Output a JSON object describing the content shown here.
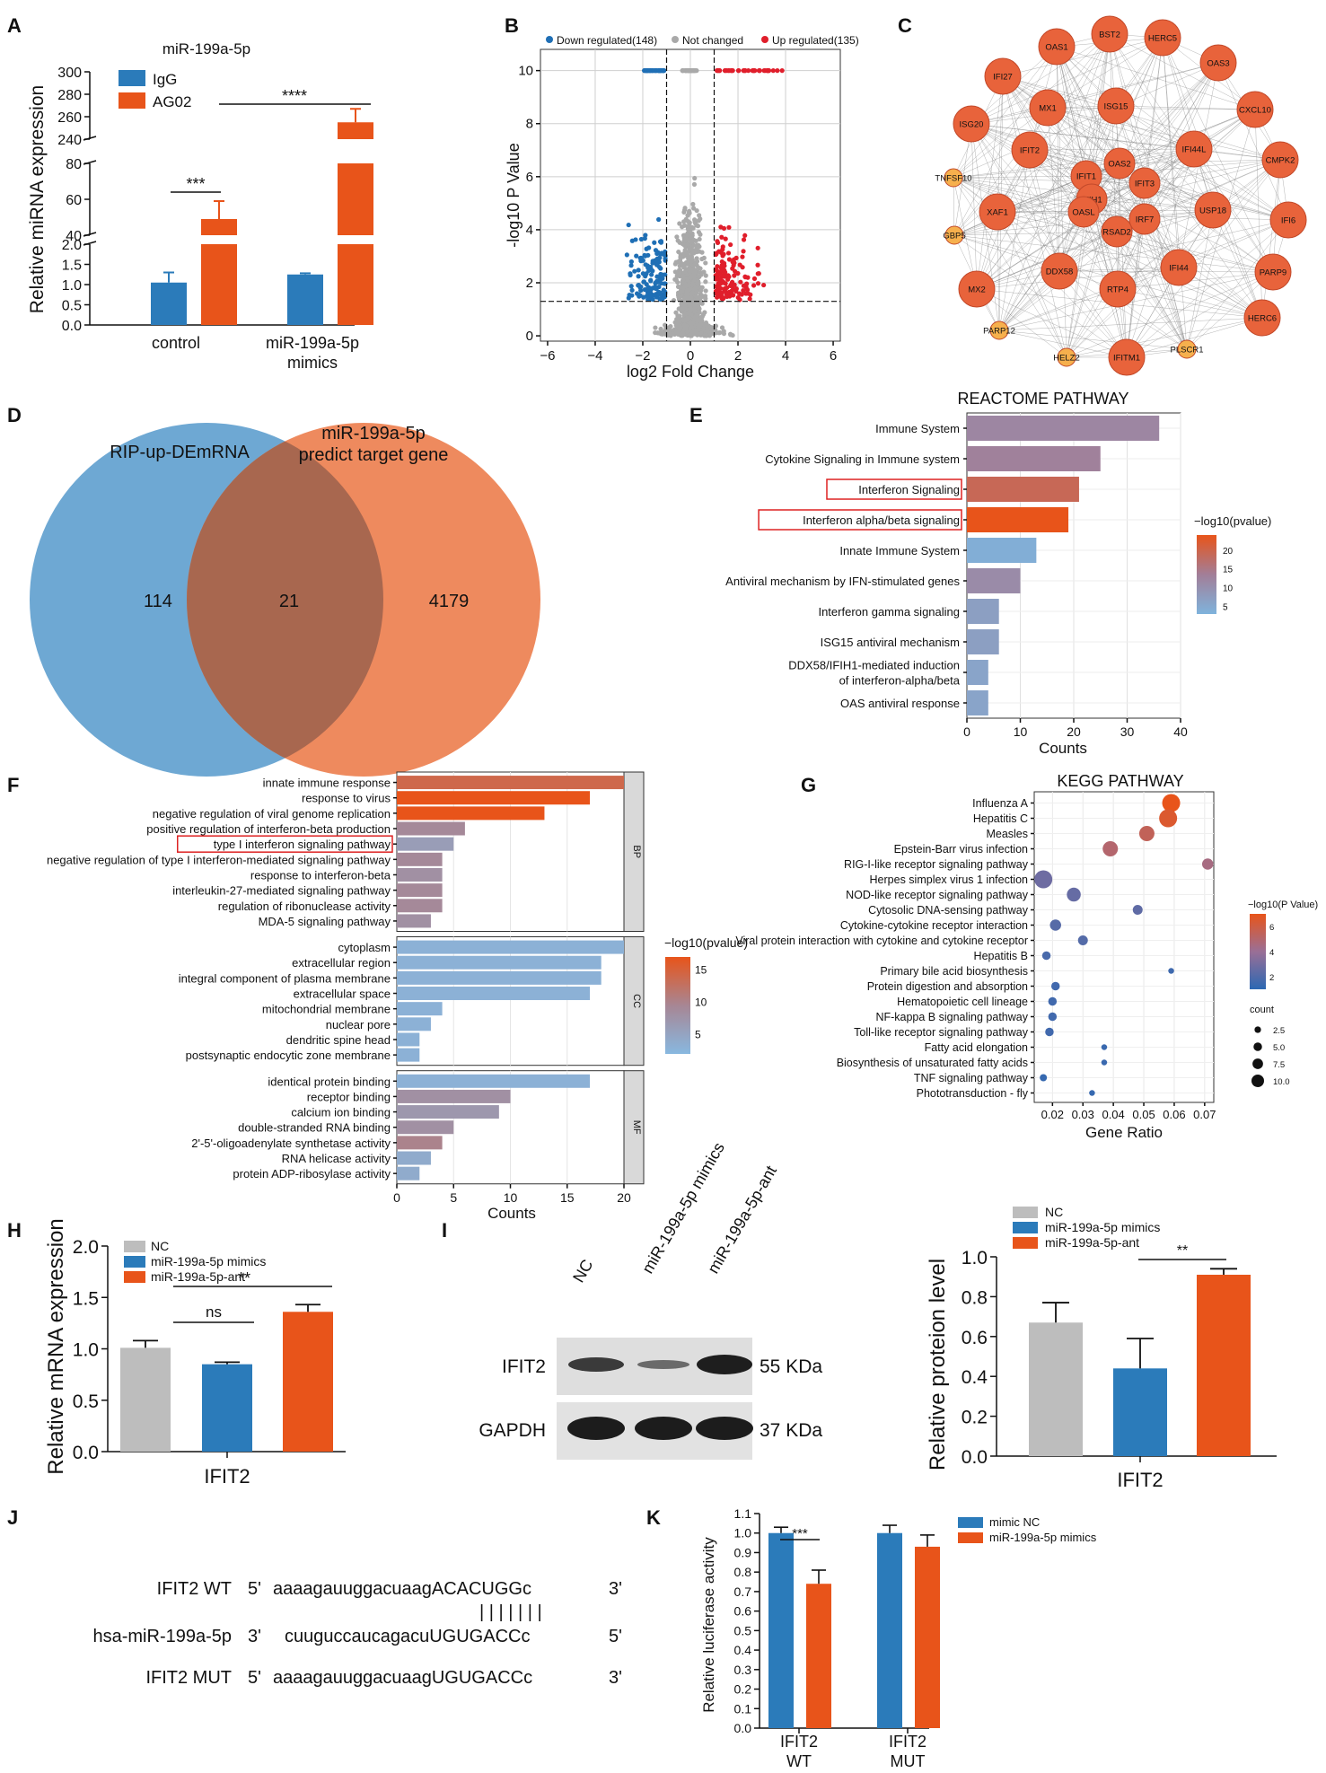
{
  "panel_labels": [
    "A",
    "B",
    "C",
    "D",
    "E",
    "F",
    "G",
    "H",
    "I",
    "J",
    "K"
  ],
  "colors": {
    "blue": "#2b7bba",
    "orange": "#e8541a",
    "gray": "#bdbdbd",
    "venn_left": "#6ea8d3",
    "venn_right": "#ee8a5e",
    "venn_mid": "#a8674f",
    "volcano_down": "#1f6fb5",
    "volcano_up": "#e01e2b",
    "volcano_nc": "#a9a9a9"
  },
  "chart_data": [
    {
      "panel": "A",
      "type": "bar",
      "title": "miR-199a-5p",
      "ylabel": "Relative miRNA expression",
      "categories": [
        "control",
        "miR-199a-5p\nmimics"
      ],
      "legend": [
        "IgG",
        "AG02"
      ],
      "series": [
        {
          "name": "IgG",
          "values": [
            1.05,
            1.25
          ],
          "err": [
            0.25,
            0.03
          ]
        },
        {
          "name": "AG02",
          "values": [
            49,
            255
          ],
          "err": [
            10,
            12
          ]
        }
      ],
      "y_ticks": [
        "0.0",
        "0.5",
        "1.0",
        "1.5",
        "2.0",
        "40",
        "60",
        "80",
        "240",
        "260",
        "280",
        "300"
      ],
      "significance": [
        "***",
        "****"
      ]
    },
    {
      "panel": "B",
      "type": "scatter",
      "xlabel": "log2 Fold Change",
      "ylabel": "-log10 P Value",
      "legend": [
        "Down regulated(148)",
        "Not changed",
        "Up regulated(135)"
      ],
      "x_ticks": [
        "−6",
        "−4",
        "−2",
        "0",
        "2",
        "4",
        "6"
      ],
      "y_ticks": [
        "0",
        "2",
        "4",
        "6",
        "8",
        "10"
      ],
      "xlim": [
        -6.3,
        6.3
      ],
      "ylim": [
        -0.2,
        10.8
      ],
      "thresholds": {
        "log2fc": [
          -1,
          1
        ],
        "neglog10p": 1.3
      }
    },
    {
      "panel": "C",
      "type": "network",
      "nodes": [
        "BST2",
        "HERC5",
        "OAS1",
        "OAS3",
        "IFI27",
        "CXCL10",
        "ISG15",
        "MX1",
        "ISG20",
        "IFI44L",
        "CMPK2",
        "IFIT2",
        "OAS2",
        "IFIT1",
        "IFIT3",
        "TNFSF10",
        "IFIH1",
        "XAF1",
        "USP18",
        "IFI6",
        "OASL",
        "IRF7",
        "RSAD2",
        "GBP5",
        "DDX58",
        "IFI44",
        "PARP9",
        "MX2",
        "RTP4",
        "HERC6",
        "PARP12",
        "PLSCR1",
        "HELZ2",
        "IFITM1"
      ]
    },
    {
      "panel": "D",
      "type": "venn",
      "sets": [
        "RIP-up-DEmRNA",
        "miR-199a-5p predict target gene"
      ],
      "set_title_lines": [
        "miR-199a-5p",
        "predict target gene"
      ],
      "values": {
        "left_only": "114",
        "intersection": "21",
        "right_only": "4179"
      }
    },
    {
      "panel": "E",
      "type": "bar",
      "title": "REACTOME PATHWAY",
      "xlabel": "Counts",
      "categories": [
        "Immune System",
        "Cytokine Signaling in Immune system",
        "Interferon Signaling",
        "Interferon alpha/beta signaling",
        "Innate Immune System",
        "Antiviral mechanism by IFN-stimulated genes",
        "Interferon gamma signaling",
        "ISG15 antiviral mechanism",
        "DDX58/IFIH1-mediated induction\nof interferon-alpha/beta",
        "OAS antiviral response"
      ],
      "values": [
        36,
        25,
        21,
        19,
        13,
        10,
        6,
        6,
        4,
        4
      ],
      "neglog10p": [
        12,
        13,
        19,
        24,
        4,
        11,
        7,
        7,
        6,
        6
      ],
      "highlighted": [
        "Interferon Signaling",
        "Interferon alpha/beta signaling"
      ],
      "x_ticks": [
        "0",
        "10",
        "20",
        "30",
        "40"
      ],
      "xlim": [
        0,
        40
      ],
      "legend_title": "−log10(pvalue)",
      "legend_ticks": [
        "20",
        "15",
        "10",
        "5"
      ],
      "legend_range": [
        3,
        24
      ]
    },
    {
      "panel": "F",
      "type": "bar",
      "xlabel": "Counts",
      "groups": [
        {
          "name": "BP",
          "categories": [
            "innate immune response",
            "response to virus",
            "negative regulation of viral genome replication",
            "positive regulation of interferon-beta production",
            "type I interferon signaling pathway",
            "negative regulation of type I interferon-mediated signaling pathway",
            "response to interferon-beta",
            "interleukin-27-mediated signaling pathway",
            "regulation of ribonuclease activity",
            "MDA-5 signaling pathway"
          ],
          "values": [
            20,
            17,
            13,
            6,
            5,
            4,
            4,
            4,
            4,
            3
          ],
          "neglog10p": [
            14,
            17,
            17,
            9,
            6,
            9,
            8,
            9,
            9,
            8
          ]
        },
        {
          "name": "CC",
          "categories": [
            "cytoplasm",
            "extracellular region",
            "integral component of plasma membrane",
            "extracellular space",
            "mitochondrial membrane",
            "nuclear pore",
            "dendritic spine head",
            "postsynaptic endocytic zone membrane"
          ],
          "values": [
            20,
            18,
            18,
            17,
            4,
            3,
            2,
            2
          ],
          "neglog10p": [
            3,
            3,
            3,
            3,
            3,
            3,
            3,
            3
          ]
        },
        {
          "name": "MF",
          "categories": [
            "identical protein binding",
            "receptor binding",
            "calcium ion binding",
            "double-stranded RNA binding",
            "2'-5'-oligoadenylate synthetase activity",
            "RNA helicase activity",
            "protein ADP-ribosylase activity"
          ],
          "values": [
            17,
            10,
            9,
            5,
            4,
            3,
            2
          ],
          "neglog10p": [
            3,
            8,
            7,
            8,
            10,
            4,
            4
          ]
        }
      ],
      "highlighted": [
        "type I interferon signaling pathway"
      ],
      "x_ticks": [
        "0",
        "5",
        "10",
        "15",
        "20"
      ],
      "xlim": [
        0,
        20
      ],
      "legend_title": "−log10(pvalue)",
      "legend_ticks": [
        "15",
        "10",
        "5"
      ],
      "legend_range": [
        2,
        17
      ]
    },
    {
      "panel": "G",
      "type": "scatter",
      "title": "KEGG PATHWAY",
      "xlabel": "Gene Ratio",
      "categories": [
        "Influenza A",
        "Hepatitis C",
        "Measles",
        "Epstein-Barr virus infection",
        "RIG-I-like receptor signaling pathway",
        "Herpes simplex virus 1 infection",
        "NOD-like receptor signaling pathway",
        "Cytosolic DNA-sensing pathway",
        "Cytokine-cytokine receptor interaction",
        "Viral protein interaction with cytokine and cytokine receptor",
        "Hepatitis B",
        "Primary bile acid biosynthesis",
        "Protein digestion and absorption",
        "Hematopoietic cell lineage",
        "NF-kappa B signaling pathway",
        "Toll-like receptor signaling pathway",
        "Fatty acid elongation",
        "Biosynthesis of unsaturated fatty acids",
        "TNF signaling pathway",
        "Phototransduction - fly"
      ],
      "gene_ratio": [
        0.059,
        0.058,
        0.051,
        0.039,
        0.071,
        0.017,
        0.027,
        0.048,
        0.021,
        0.03,
        0.018,
        0.059,
        0.021,
        0.02,
        0.02,
        0.019,
        0.037,
        0.037,
        0.017,
        0.033
      ],
      "count": [
        10,
        10,
        8,
        8,
        5,
        10,
        7,
        4,
        5,
        4,
        3,
        1,
        3,
        3,
        3,
        3,
        1,
        1,
        2,
        1
      ],
      "neglog10p": [
        7,
        6.5,
        5.5,
        5,
        4.5,
        2.8,
        2.6,
        2.4,
        2.2,
        2.1,
        1.8,
        1.5,
        1.6,
        1.6,
        1.6,
        1.6,
        1.4,
        1.4,
        1.3,
        1.3
      ],
      "x_ticks": [
        "0.02",
        "0.03",
        "0.04",
        "0.05",
        "0.06",
        "0.07"
      ],
      "xlim": [
        0.014,
        0.073
      ],
      "legend_title": "−log10(P Value)",
      "legend_ticks": [
        "6",
        "4",
        "2"
      ],
      "legend_range": [
        1,
        7
      ],
      "size_legend_title": "count",
      "size_legend": [
        "2.5",
        "5.0",
        "7.5",
        "10.0"
      ]
    },
    {
      "panel": "H",
      "type": "bar",
      "ylabel": "Relative mRNA expression",
      "xlabel": "IFIT2",
      "legend": [
        "NC",
        "miR-199a-5p mimics",
        "miR-199a-5p-ant"
      ],
      "values": [
        1.01,
        0.85,
        1.36
      ],
      "err": [
        0.07,
        0.02,
        0.07
      ],
      "ylim": [
        0,
        2.0
      ],
      "y_ticks": [
        "0.0",
        "0.5",
        "1.0",
        "1.5",
        "2.0"
      ],
      "significance": [
        "ns",
        "**"
      ]
    },
    {
      "panel": "I",
      "type": "blot",
      "lanes": [
        "NC",
        "miR-199a-5p mimics",
        "miR-199a-5p-ant"
      ],
      "bands": [
        {
          "name": "IFIT2",
          "size": "55 KDa"
        },
        {
          "name": "GAPDH",
          "size": "37 KDa"
        }
      ]
    },
    {
      "panel": "I2",
      "type": "bar",
      "ylabel": "Relative proteion level",
      "xlabel": "IFIT2",
      "legend": [
        "NC",
        "miR-199a-5p mimics",
        "miR-199a-5p-ant"
      ],
      "values": [
        0.67,
        0.44,
        0.91
      ],
      "err": [
        0.1,
        0.15,
        0.03
      ],
      "ylim": [
        0,
        1.0
      ],
      "y_ticks": [
        "0.0",
        "0.2",
        "0.4",
        "0.6",
        "0.8",
        "1.0"
      ],
      "significance": [
        "**"
      ]
    },
    {
      "panel": "K",
      "type": "bar",
      "ylabel": "Relative luciferase activity",
      "categories": [
        "IFIT2\nWT",
        "IFIT2\nMUT"
      ],
      "legend": [
        "mimic NC",
        "miR-199a-5p mimics"
      ],
      "series": [
        {
          "name": "mimic NC",
          "values": [
            1.0,
            1.0
          ],
          "err": [
            0.03,
            0.04
          ]
        },
        {
          "name": "miR-199a-5p mimics",
          "values": [
            0.74,
            0.93
          ],
          "err": [
            0.07,
            0.06
          ]
        }
      ],
      "ylim": [
        0,
        1.1
      ],
      "y_ticks": [
        "0.0",
        "0.1",
        "0.2",
        "0.3",
        "0.4",
        "0.5",
        "0.6",
        "0.7",
        "0.8",
        "0.9",
        "1.0",
        "1.1"
      ],
      "significance": [
        "***"
      ]
    }
  ],
  "sequences": {
    "rows": [
      {
        "name": "IFIT2  WT",
        "p5": "5'",
        "lower": "aaaagauuggacuaag",
        "upper": "ACACUGG",
        "tail": "c",
        "p3": "3'"
      },
      {
        "name": "hsa-miR-199a-5p",
        "p5": "3'",
        "lower": "cuuguccaucagacu",
        "upper": "UGUGACC",
        "tail": "c",
        "p3": "5'"
      },
      {
        "name": "IFIT2  MUT",
        "p5": "5'",
        "lower": "aaaagauuggacuaag",
        "upper": "UGUGACC",
        "tail": "c",
        "p3": "3'"
      }
    ],
    "pairing": "| | | | | | |"
  }
}
